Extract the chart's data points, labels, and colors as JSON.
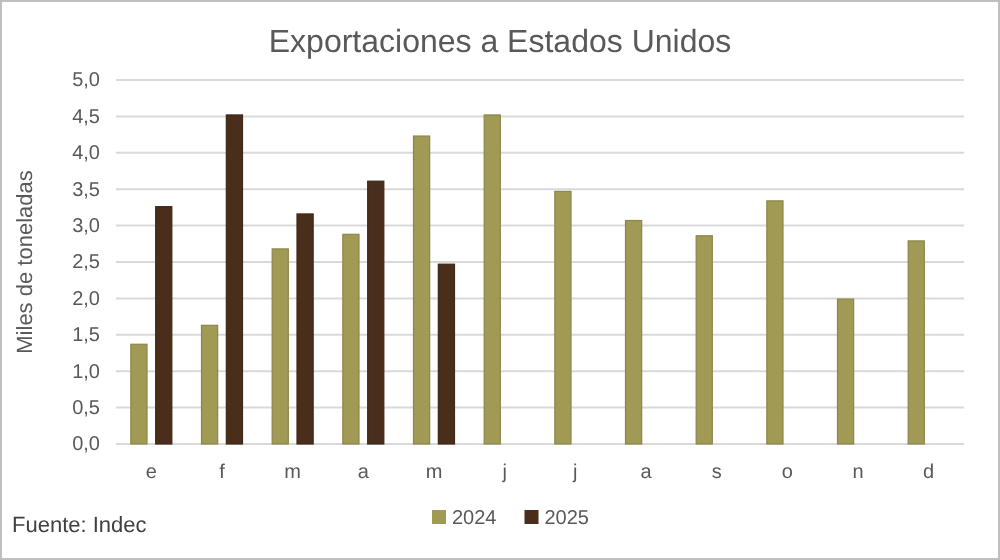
{
  "chart_data": {
    "type": "bar",
    "title": "Exportaciones a Estados Unidos",
    "ylabel": "Miles de toneladas",
    "categories": [
      "e",
      "f",
      "m",
      "a",
      "m",
      "j",
      "j",
      "a",
      "s",
      "o",
      "n",
      "d"
    ],
    "series": [
      {
        "name": "2024",
        "color": "#a09a55",
        "values": [
          1.37,
          1.63,
          2.68,
          2.88,
          4.23,
          4.52,
          3.47,
          3.07,
          2.86,
          3.34,
          1.99,
          2.79
        ]
      },
      {
        "name": "2025",
        "color": "#4a2e1c",
        "values": [
          3.26,
          4.52,
          3.16,
          3.61,
          2.47,
          null,
          null,
          null,
          null,
          null,
          null,
          null
        ]
      }
    ],
    "ylim": [
      0,
      5
    ],
    "yticks": [
      {
        "value": 0,
        "label": "0,0"
      },
      {
        "value": 0.5,
        "label": "0,5"
      },
      {
        "value": 1,
        "label": "1,0"
      },
      {
        "value": 1.5,
        "label": "1,5"
      },
      {
        "value": 2,
        "label": "2,0"
      },
      {
        "value": 2.5,
        "label": "2,5"
      },
      {
        "value": 3,
        "label": "3,0"
      },
      {
        "value": 3.5,
        "label": "3,5"
      },
      {
        "value": 4,
        "label": "4,0"
      },
      {
        "value": 4.5,
        "label": "4,5"
      },
      {
        "value": 5,
        "label": "5,0"
      }
    ],
    "grid": "y",
    "legend": "bottom",
    "annotations": [
      "Fuente: Indec"
    ]
  }
}
